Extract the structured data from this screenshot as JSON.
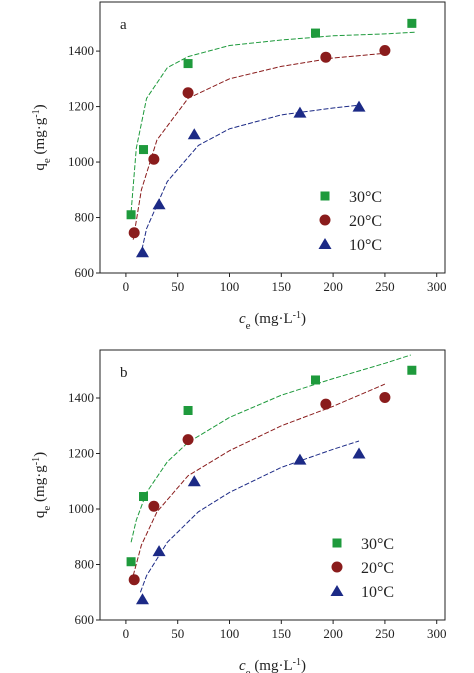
{
  "chart_data": [
    {
      "type": "scatter",
      "panel_label": "a",
      "x_label": [
        "c",
        "e",
        " (mg·L",
        "-1",
        ")"
      ],
      "y_label": [
        "q",
        "e",
        " (mg·g",
        "-1",
        ")"
      ],
      "xlim": [
        -25,
        308
      ],
      "ylim": [
        600,
        1577
      ],
      "xticks": [
        0,
        50,
        100,
        150,
        200,
        250,
        300
      ],
      "yticks": [
        600,
        800,
        1000,
        1200,
        1400
      ],
      "series": [
        {
          "name": "30°C",
          "color": "#1e9a3c",
          "marker": "square",
          "x": [
            5,
            17,
            60,
            183,
            276
          ],
          "values": [
            810,
            1045,
            1355,
            1465,
            1500
          ]
        },
        {
          "name": "20°C",
          "color": "#8a1c1c",
          "marker": "circle",
          "x": [
            8,
            27,
            60,
            193,
            250
          ],
          "values": [
            745,
            1010,
            1250,
            1378,
            1402
          ]
        },
        {
          "name": "10°C",
          "color": "#1c2a86",
          "marker": "triangle",
          "x": [
            16,
            32,
            66,
            168,
            225
          ],
          "values": [
            675,
            848,
            1100,
            1178,
            1200
          ]
        }
      ],
      "fits": [
        {
          "color": "#1e9a3c",
          "x": [
            5,
            10,
            20,
            40,
            60,
            100,
            150,
            200,
            250,
            280
          ],
          "values": [
            820,
            1050,
            1230,
            1340,
            1380,
            1420,
            1440,
            1455,
            1462,
            1468
          ]
        },
        {
          "color": "#8a1c1c",
          "x": [
            7,
            15,
            30,
            60,
            100,
            150,
            200,
            250
          ],
          "values": [
            720,
            900,
            1080,
            1230,
            1300,
            1345,
            1375,
            1392
          ]
        },
        {
          "color": "#1c2a86",
          "x": [
            14,
            20,
            40,
            70,
            100,
            150,
            200,
            225
          ],
          "values": [
            660,
            760,
            930,
            1060,
            1120,
            1170,
            1195,
            1205
          ]
        }
      ]
    },
    {
      "type": "scatter",
      "panel_label": "b",
      "x_label": [
        "c",
        "e",
        " (mg·L",
        "-1",
        ")"
      ],
      "y_label": [
        "q",
        "e",
        " (mg·g",
        "-1",
        ")"
      ],
      "xlim": [
        -25,
        308
      ],
      "ylim": [
        600,
        1573
      ],
      "xticks": [
        0,
        50,
        100,
        150,
        200,
        250,
        300
      ],
      "yticks": [
        600,
        800,
        1000,
        1200,
        1400
      ],
      "series": [
        {
          "name": "30°C",
          "color": "#1e9a3c",
          "marker": "square",
          "x": [
            5,
            17,
            60,
            183,
            276
          ],
          "values": [
            810,
            1045,
            1355,
            1465,
            1500
          ]
        },
        {
          "name": "20°C",
          "color": "#8a1c1c",
          "marker": "circle",
          "x": [
            8,
            27,
            60,
            193,
            250
          ],
          "values": [
            745,
            1010,
            1250,
            1378,
            1402
          ]
        },
        {
          "name": "10°C",
          "color": "#1c2a86",
          "marker": "triangle",
          "x": [
            16,
            32,
            66,
            168,
            225
          ],
          "values": [
            675,
            848,
            1100,
            1178,
            1200
          ]
        }
      ],
      "fits": [
        {
          "color": "#1e9a3c",
          "x": [
            5,
            10,
            20,
            40,
            60,
            100,
            150,
            200,
            250,
            275
          ],
          "values": [
            880,
            960,
            1060,
            1170,
            1240,
            1330,
            1410,
            1470,
            1525,
            1555
          ]
        },
        {
          "color": "#8a1c1c",
          "x": [
            7,
            15,
            30,
            60,
            100,
            150,
            200,
            250
          ],
          "values": [
            760,
            870,
            990,
            1120,
            1210,
            1300,
            1370,
            1450
          ]
        },
        {
          "color": "#1c2a86",
          "x": [
            14,
            20,
            40,
            70,
            100,
            150,
            200,
            225
          ],
          "values": [
            700,
            760,
            880,
            990,
            1060,
            1150,
            1215,
            1245
          ]
        }
      ]
    }
  ]
}
